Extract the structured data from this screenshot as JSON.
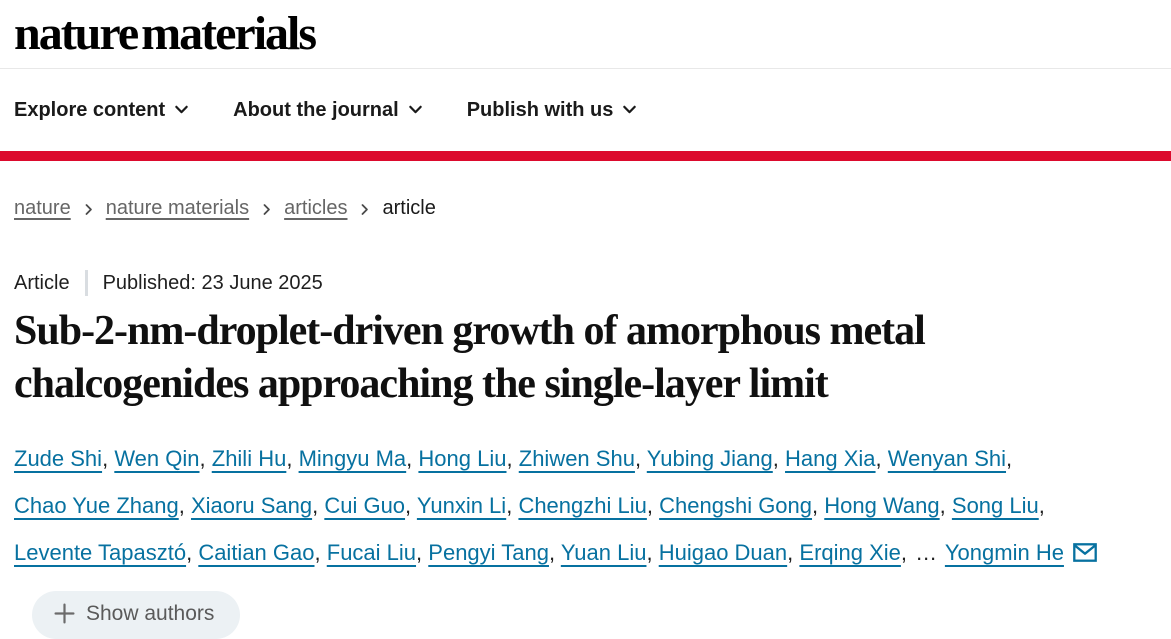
{
  "header": {
    "logo_text": "nature materials",
    "nav": [
      {
        "label": "Explore content"
      },
      {
        "label": "About the journal"
      },
      {
        "label": "Publish with us"
      }
    ]
  },
  "breadcrumb": {
    "items": [
      {
        "label": "nature",
        "is_link": true
      },
      {
        "label": "nature materials",
        "is_link": true
      },
      {
        "label": "articles",
        "is_link": true
      },
      {
        "label": "article",
        "is_link": false
      }
    ]
  },
  "article": {
    "type_label": "Article",
    "published_label": "Published: 23 June 2025",
    "title": "Sub-2-nm-droplet-driven growth of amorphous metal chalcogenides approaching the single-layer limit",
    "authors": [
      "Zude Shi",
      "Wen Qin",
      "Zhili Hu",
      "Mingyu Ma",
      "Hong Liu",
      "Zhiwen Shu",
      "Yubing Jiang",
      "Hang Xia",
      "Wenyan Shi",
      "Chao Yue Zhang",
      "Xiaoru Sang",
      "Cui Guo",
      "Yunxin Li",
      "Chengzhi Liu",
      "Chengshi Gong",
      "Hong Wang",
      "Song Liu",
      "Levente Tapasztó",
      "Caitian Gao",
      "Fucai Liu",
      "Pengyi Tang",
      "Yuan Liu",
      "Huigao Duan",
      "Erqing Xie"
    ],
    "author_separator": ",",
    "ellipsis": "…",
    "corresponding_author": "Yongmin He",
    "show_authors_label": "Show authors"
  },
  "colors": {
    "brand_red": "#dc0a2d",
    "link_blue": "#0771a0",
    "text_dark": "#222222",
    "muted_gray": "#666666",
    "button_bg": "#ecf1f4",
    "button_text": "#5a5a5a"
  }
}
